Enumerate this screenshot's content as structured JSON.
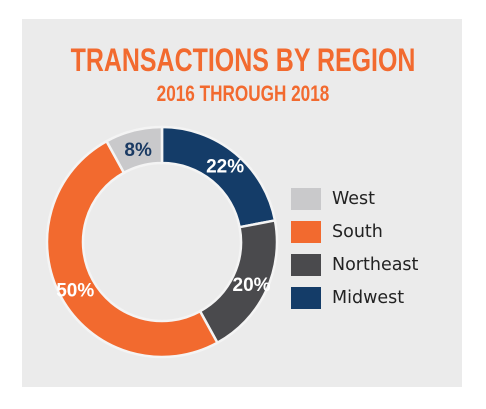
{
  "colors": {
    "accent": "#f26a2f",
    "background": "#ebebeb",
    "west": "#c9c9cb",
    "south": "#f26a2f",
    "northeast": "#4a4a4d",
    "midwest": "#143c68",
    "slice_separator": "#f4f4f4"
  },
  "chart_data": {
    "type": "pie",
    "style": "donut",
    "title": "TRANSACTIONS BY REGION",
    "subtitle": "2016 THROUGH 2018",
    "legend_position": "right",
    "start": "top",
    "direction": "clockwise",
    "categories": [
      "Midwest",
      "Northeast",
      "South",
      "West"
    ],
    "values": [
      22,
      20,
      50,
      8
    ],
    "data_labels": [
      "22%",
      "20%",
      "50%",
      "8%"
    ],
    "legend": [
      "West",
      "South",
      "Northeast",
      "Midwest"
    ]
  }
}
